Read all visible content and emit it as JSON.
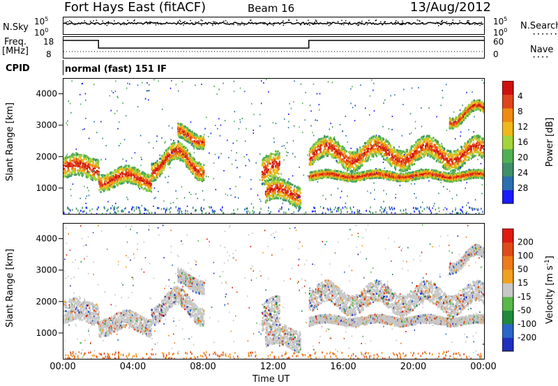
{
  "header": {
    "station": "Fort Hays East (fitACF)",
    "beam": "Beam 16",
    "date": "13/Aug/2012"
  },
  "labels": {
    "nsky": "N.Sky",
    "nsky_hi": "10^5",
    "nsky_lo": "10^0",
    "nsearch": "N.Search",
    "nsearch_hi": "10^5",
    "nsearch_lo": "10^0",
    "freq": "Freq.",
    "freq_unit": "[MHz]",
    "freq_hi": "18",
    "freq_lo": "8",
    "nave": "Nave",
    "nave_hi": "60",
    "nave_lo": "0",
    "cpid": "CPID",
    "cpid_text": "normal (fast) 151 IF"
  },
  "chart_data": [
    {
      "type": "heatmap",
      "panel": "power",
      "xlabel": "",
      "ylabel": "Slant Range [km]",
      "ylim": [
        200,
        4500
      ],
      "yticks": [
        "1000",
        "2000",
        "3000",
        "4000"
      ],
      "colorbar_label": "Power [dB]",
      "colorbar_ticks": [
        "4",
        "8",
        "12",
        "16",
        "20",
        "24",
        "28"
      ],
      "colors": [
        "#1a1aff",
        "#2b6fb0",
        "#3f8f6a",
        "#52b054",
        "#a4d43b",
        "#f0b81a",
        "#f28a12",
        "#e0441a",
        "#d01010"
      ],
      "features": [
        {
          "from_ut": 0,
          "to_ut": 2,
          "range_km": 1700,
          "intensity": 0.9
        },
        {
          "from_ut": 2,
          "to_ut": 8,
          "range_km": 1400,
          "intensity": 0.85
        },
        {
          "from_ut": 11.5,
          "to_ut": 13.5,
          "range_km": 900,
          "intensity": 0.8
        },
        {
          "from_ut": 14,
          "to_ut": 24,
          "range_km": 2100,
          "intensity": 0.9
        }
      ]
    },
    {
      "type": "heatmap",
      "panel": "velocity",
      "xlabel": "Time UT",
      "ylabel": "Slant Range [km]",
      "ylim": [
        200,
        4500
      ],
      "yticks": [
        "1000",
        "2000",
        "3000",
        "4000"
      ],
      "xticks": [
        "00:00",
        "04:00",
        "08:00",
        "12:00",
        "16:00",
        "20:00",
        "00:00"
      ],
      "colorbar_label": "Velocity [m s^-1]",
      "colorbar_ticks": [
        "200",
        "100",
        "50",
        "15",
        "-15",
        "-50",
        "-100",
        "-200"
      ],
      "colors": [
        "#1f2fbf",
        "#2a66c9",
        "#1f8a3c",
        "#59b84a",
        "#c8c8c8",
        "#f2a020",
        "#ee7a18",
        "#e04a18",
        "#e01a10"
      ]
    }
  ]
}
